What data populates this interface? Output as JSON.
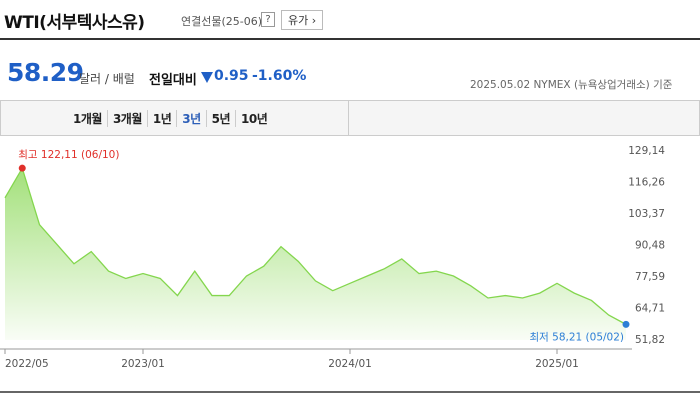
{
  "header": {
    "title": "WTI(서부텍사스유)",
    "subtitle": "연결선물(25-06)",
    "help": "?",
    "button": "유가 ›"
  },
  "quote": {
    "price": "58.29",
    "unit": "달러 / 배럴",
    "change_label": "전일대비",
    "change": "0.95",
    "change_pct": "-1.60%",
    "source": "2025.05.02  NYMEX (뉴욕상업거래소) 기준"
  },
  "tabs": [
    "1개월",
    "3개월",
    "1년",
    "3년",
    "5년",
    "10년"
  ],
  "selected_tab": "3년",
  "chart_data": {
    "type": "area",
    "categories": [
      "2022/05",
      null,
      null,
      null,
      null,
      null,
      null,
      null,
      "2023/01",
      null,
      null,
      null,
      null,
      null,
      null,
      null,
      null,
      null,
      null,
      null,
      "2024/01",
      null,
      null,
      null,
      null,
      null,
      null,
      null,
      null,
      null,
      null,
      null,
      "2025/01",
      null,
      null,
      null,
      null
    ],
    "series": [
      {
        "name": "WTI",
        "color": "#84d64e",
        "values": [
          110,
          122.11,
          99,
          91,
          83,
          88,
          80,
          77,
          79,
          77,
          70,
          80,
          70,
          70,
          78,
          82,
          90,
          84,
          76,
          72,
          75,
          78,
          81,
          85,
          79,
          80,
          78,
          74,
          69,
          70,
          69,
          71,
          75,
          71,
          68,
          62,
          58.21
        ]
      }
    ],
    "ylim": [
      51.82,
      129.14
    ],
    "yticks": [
      {
        "value": 51.82,
        "label": "51,82"
      },
      {
        "value": 64.71,
        "label": "64,71"
      },
      {
        "value": 77.59,
        "label": "77,59"
      },
      {
        "value": 90.48,
        "label": "90,48"
      },
      {
        "value": 103.37,
        "label": "103,37"
      },
      {
        "value": 116.26,
        "label": "116,26"
      },
      {
        "value": 129.14,
        "label": "129,14"
      }
    ],
    "max_label": "최고 122,11 (06/10)",
    "max_color": "#e0302a",
    "min_label": "최저 58,21 (05/02)",
    "min_color": "#2d7fd6"
  }
}
